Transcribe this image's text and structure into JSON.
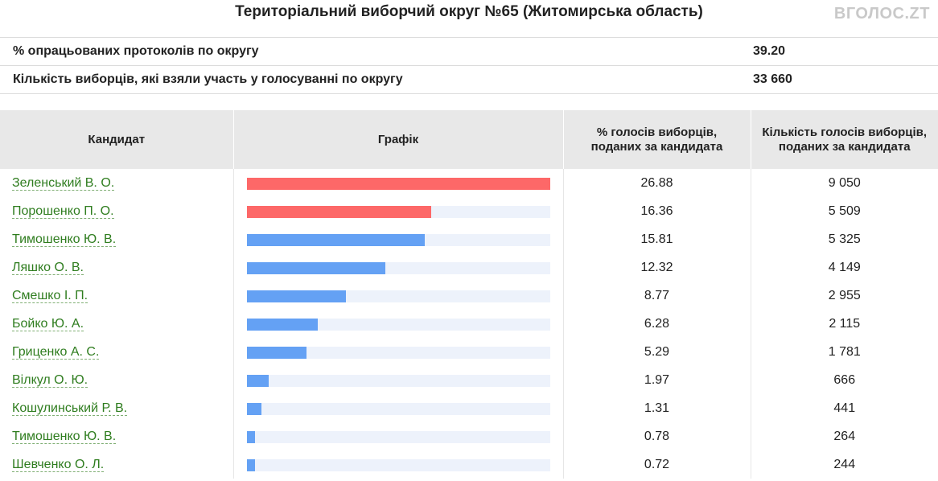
{
  "header": {
    "title": "Територіальний виборчий округ №65 (Житомирська область)",
    "watermark": "ВГОЛОС.ZT"
  },
  "summary": {
    "rows": [
      {
        "label": "% опрацьованих протоколів по округу",
        "value": "39.20"
      },
      {
        "label": "Кількість виборців, які взяли участь у голосуванні по округу",
        "value": "33 660"
      }
    ]
  },
  "colors": {
    "top_candidates_bar": "#fd6868",
    "other_candidates_bar": "#64a1f4",
    "bar_track": "#edf2fb",
    "candidate_link": "#2f7d1f"
  },
  "table": {
    "columns": [
      "Кандидат",
      "Графік",
      "% голосів виборців, поданих за кандидата",
      "Кількість голосів виборців, поданих за кандидата"
    ]
  },
  "chart_data": {
    "type": "bar",
    "title": "Територіальний виборчий округ №65 (Житомирська область)",
    "categories": [
      "Зеленський В. О.",
      "Порошенко П. О.",
      "Тимошенко Ю. В.",
      "Ляшко О. В.",
      "Смешко І. П.",
      "Бойко Ю. А.",
      "Гриценко А. С.",
      "Вілкул О. Ю.",
      "Кошулинський Р. В.",
      "Тимошенко Ю. В.",
      "Шевченко О. Л."
    ],
    "series": [
      {
        "name": "% голосів виборців, поданих за кандидата",
        "values": [
          26.88,
          16.36,
          15.81,
          12.32,
          8.77,
          6.28,
          5.29,
          1.97,
          1.31,
          0.78,
          0.72
        ]
      },
      {
        "name": "Кількість голосів виборців, поданих за кандидата",
        "values": [
          9050,
          5509,
          5325,
          4149,
          2955,
          2115,
          1781,
          666,
          441,
          264,
          244
        ]
      }
    ],
    "percent_labels": [
      "26.88",
      "16.36",
      "15.81",
      "12.32",
      "8.77",
      "6.28",
      "5.29",
      "1.97",
      "1.31",
      "0.78",
      "0.72"
    ],
    "count_labels": [
      "9 050",
      "5 509",
      "5 325",
      "4 149",
      "2 955",
      "2 115",
      "1 781",
      "666",
      "441",
      "264",
      "244"
    ],
    "highlighted_top": 2,
    "xlim": [
      0,
      26.88
    ],
    "grid": false,
    "legend": "none"
  }
}
